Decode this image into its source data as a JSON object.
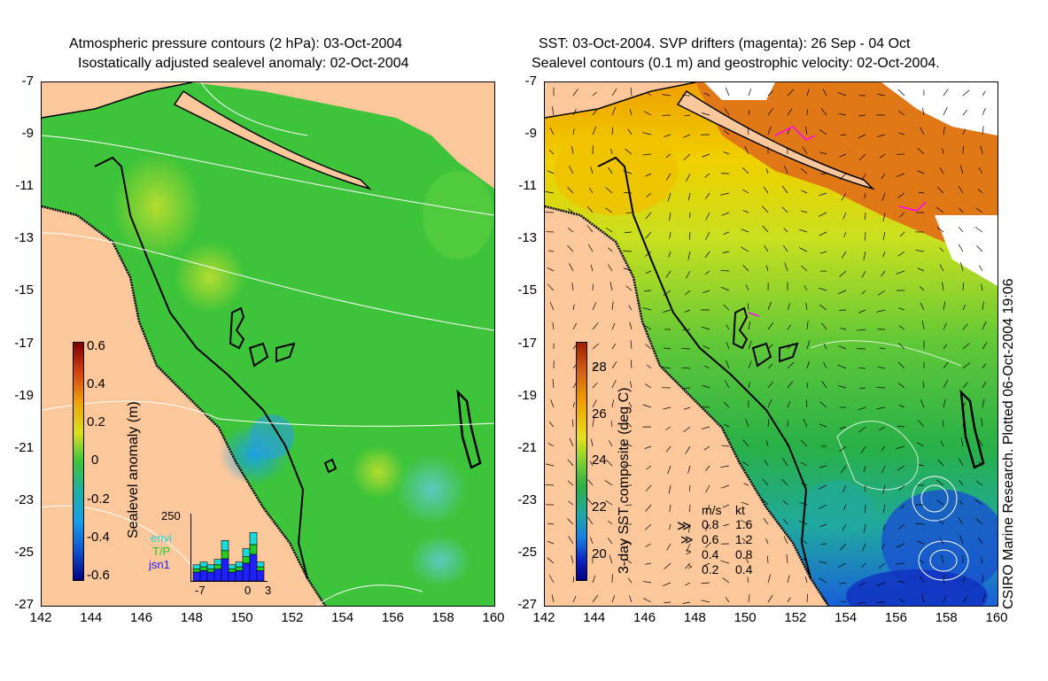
{
  "left_panel": {
    "title_line1": "Atmospheric pressure contours (2 hPa): 03-Oct-2004",
    "title_line2": "Isostatically adjusted sealevel anomaly: 02-Oct-2004",
    "colorbar": {
      "label": "Sealevel anomaly (m)",
      "ticks": [
        "0.6",
        "0.4",
        "0.2",
        "0",
        "-0.2",
        "-0.4",
        "-0.6"
      ]
    },
    "inset": {
      "ymax_label": "250",
      "xticks": [
        "-7",
        "0",
        "3"
      ],
      "legend": [
        {
          "name": "envi",
          "color": "#19d9d9"
        },
        {
          "name": "T/P",
          "color": "#22cc22"
        },
        {
          "name": "jsn1",
          "color": "#2020ff"
        }
      ],
      "bars": [
        {
          "day": -7,
          "value": 60
        },
        {
          "day": -6,
          "value": 70
        },
        {
          "day": -5,
          "value": 60
        },
        {
          "day": -4,
          "value": 80
        },
        {
          "day": -3,
          "value": 150
        },
        {
          "day": -2,
          "value": 60
        },
        {
          "day": -1,
          "value": 70
        },
        {
          "day": 0,
          "value": 120
        },
        {
          "day": 1,
          "value": 180
        },
        {
          "day": 2,
          "value": 70
        }
      ]
    }
  },
  "right_panel": {
    "title_line1": "SST: 03-Oct-2004. SVP drifters (magenta): 26 Sep - 04 Oct",
    "title_line2": "Sealevel contours (0.1 m) and geostrophic velocity: 02-Oct-2004.",
    "colorbar": {
      "label": "3-day SST composite (deg C)",
      "ticks": [
        "28",
        "26",
        "24",
        "22",
        "20"
      ]
    },
    "velocity_key": {
      "header_ms": "m/s",
      "header_kt": "kt",
      "rows": [
        {
          "ms": "0.8",
          "kt": "1.6"
        },
        {
          "ms": "0.6",
          "kt": "1.2"
        },
        {
          "ms": "0.4",
          "kt": "0.8"
        },
        {
          "ms": "0.2",
          "kt": "0.4"
        }
      ]
    }
  },
  "axes": {
    "y_ticks": [
      "-7",
      "-9",
      "-11",
      "-13",
      "-15",
      "-17",
      "-19",
      "-21",
      "-23",
      "-25",
      "-27"
    ],
    "x_ticks": [
      "142",
      "144",
      "146",
      "148",
      "150",
      "152",
      "154",
      "156",
      "158",
      "160"
    ],
    "lat_range": [
      -27,
      -7
    ],
    "lon_range": [
      142,
      160
    ]
  },
  "credit": "CSIRO Marine Research. Plotted 06-Oct-2004 19:06",
  "colors": {
    "land": "#fcc89b",
    "sla_mid": "#3ec43a",
    "coast": "#000000"
  }
}
